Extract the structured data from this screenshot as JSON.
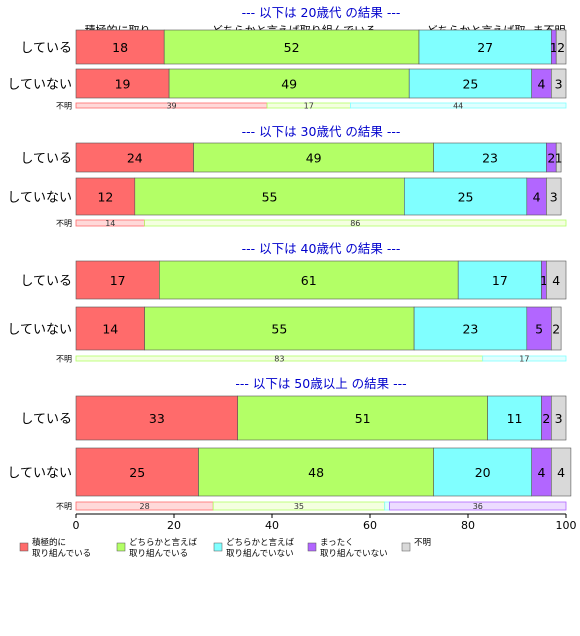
{
  "chart_data": {
    "type": "bar",
    "orientation": "horizontal",
    "stacked": true,
    "xlim": [
      0,
      100
    ],
    "xticks": [
      0,
      20,
      40,
      60,
      80,
      100
    ],
    "grid": false,
    "legend_position": "bottom",
    "column_headers": [
      "積極的に取り..",
      "どちらかと言えば取り組んでいる",
      "どちらかと言えば取..ま不明"
    ],
    "unknown_label": "不明",
    "series": [
      {
        "name": "積極的に\n取り組んでいる",
        "color": "#ff6b6b",
        "light": "#ffd9d9"
      },
      {
        "name": "どちらかと言えば\n取り組んでいる",
        "color": "#b3ff66",
        "light": "#f4ffe0"
      },
      {
        "name": "どちらかと言えば\n取り組んでいない",
        "color": "#80ffff",
        "light": "#e0ffff"
      },
      {
        "name": "まったく\n取り組んでいない",
        "color": "#b266ff",
        "light": "#ecdcff"
      },
      {
        "name": "不明",
        "color": "#d9d9d9",
        "light": "#d9d9d9"
      }
    ],
    "groups": [
      {
        "title": "--- 以下は 20歳代 の結果 ---",
        "rows": [
          {
            "label": "している",
            "values": [
              18,
              52,
              27,
              1,
              2
            ]
          },
          {
            "label": "していない",
            "values": [
              19,
              49,
              25,
              4,
              3
            ]
          }
        ],
        "unknown": [
          39,
          17,
          44,
          0,
          0
        ]
      },
      {
        "title": "--- 以下は 30歳代 の結果 ---",
        "rows": [
          {
            "label": "している",
            "values": [
              24,
              49,
              23,
              2,
              1
            ]
          },
          {
            "label": "していない",
            "values": [
              12,
              55,
              25,
              4,
              3
            ]
          }
        ],
        "unknown": [
          14,
          86,
          0,
          0,
          0
        ]
      },
      {
        "title": "--- 以下は 40歳代 の結果 ---",
        "rows": [
          {
            "label": "している",
            "values": [
              17,
              61,
              17,
              1,
              4
            ]
          },
          {
            "label": "していない",
            "values": [
              14,
              55,
              23,
              5,
              2
            ]
          }
        ],
        "unknown": [
          0,
          83,
          17,
          0,
          0
        ]
      },
      {
        "title": "--- 以下は 50歳以上 の結果 ---",
        "rows": [
          {
            "label": "している",
            "values": [
              33,
              51,
              11,
              2,
              3
            ]
          },
          {
            "label": "していない",
            "values": [
              25,
              48,
              20,
              4,
              4
            ]
          }
        ],
        "unknown": [
          28,
          35,
          1,
          36,
          0
        ]
      }
    ]
  },
  "colors": {
    "title": "#0000cc",
    "axis": "#000000"
  }
}
